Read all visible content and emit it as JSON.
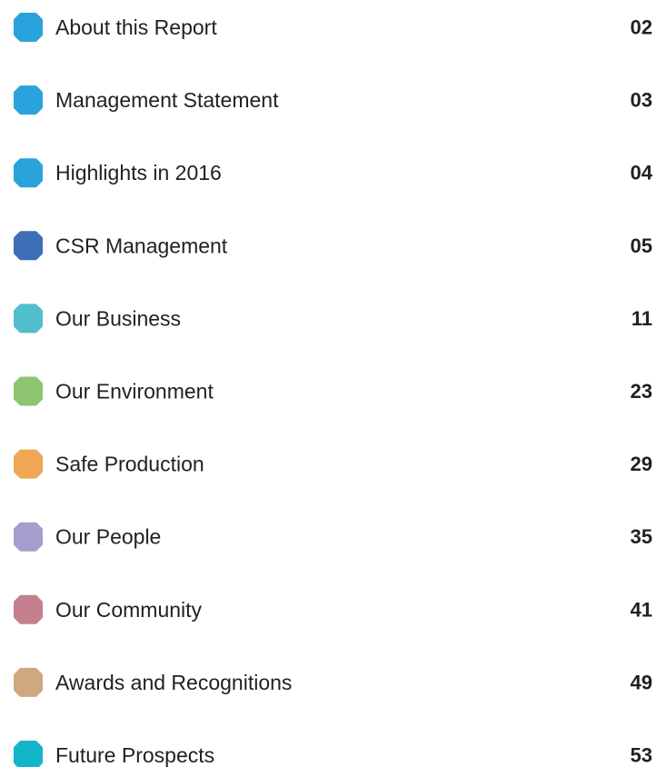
{
  "toc": {
    "items": [
      {
        "title": "About this Report",
        "page": "02",
        "color": "#2aa3dc"
      },
      {
        "title": "Management Statement",
        "page": "03",
        "color": "#2aa3dc"
      },
      {
        "title": "Highlights in 2016",
        "page": "04",
        "color": "#2aa3dc"
      },
      {
        "title": "CSR Management",
        "page": "05",
        "color": "#3d6fb7"
      },
      {
        "title": "Our Business",
        "page": "11",
        "color": "#50bfcb"
      },
      {
        "title": "Our Environment",
        "page": "23",
        "color": "#8dc571"
      },
      {
        "title": "Safe Production",
        "page": "29",
        "color": "#eea853"
      },
      {
        "title": "Our People",
        "page": "35",
        "color": "#a59dcd"
      },
      {
        "title": "Our Community",
        "page": "41",
        "color": "#c4808f"
      },
      {
        "title": "Awards and Recognitions",
        "page": "49",
        "color": "#cfa880"
      },
      {
        "title": "Future Prospects",
        "page": "53",
        "color": "#13b5c9"
      }
    ]
  }
}
